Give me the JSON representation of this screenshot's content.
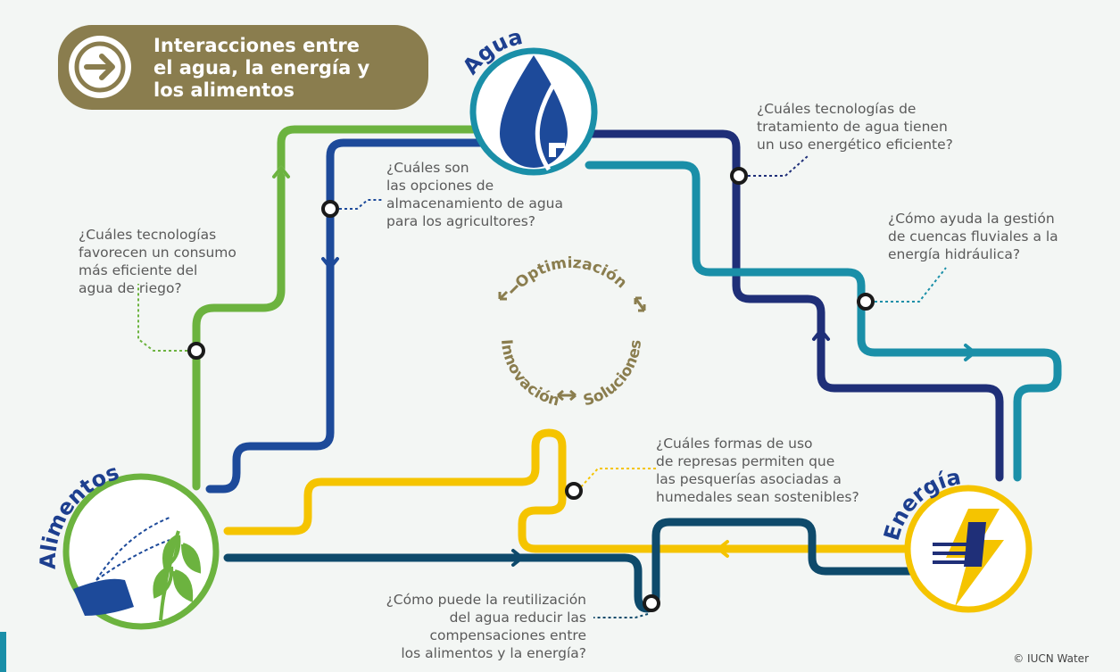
{
  "title": {
    "lines": [
      "Interacciones entre",
      "el agua, la energía y",
      "los alimentos"
    ]
  },
  "nodes": [
    {
      "label": "Agua"
    },
    {
      "label": "Alimentos"
    },
    {
      "label": "Energía"
    }
  ],
  "questions": [
    {
      "lines": [
        "¿Cuáles tecnologías de",
        "tratamiento de agua tienen",
        "un uso energético eficiente?"
      ]
    },
    {
      "lines": [
        "¿Cuáles son",
        "las opciones de",
        "almacenamiento de agua",
        "para los agricultores?"
      ]
    },
    {
      "lines": [
        "¿Cuáles tecnologías",
        "favorecen un consumo",
        "más eficiente del",
        "agua de riego?"
      ]
    },
    {
      "lines": [
        "¿Cómo ayuda la gestión",
        "de cuencas fluviales a la",
        "energía hidráulica?"
      ]
    },
    {
      "lines": [
        "¿Cuáles formas de uso",
        "de represas permiten que",
        "las pesquerías asociadas a",
        "humedales sean sostenibles?"
      ]
    },
    {
      "lines": [
        "¿Cómo puede la reutilización",
        "del agua reducir las",
        "compensaciones entre",
        "los alimentos y la energía?"
      ]
    }
  ],
  "cycle": [
    "Optimización",
    "Soluciones",
    "Innovación"
  ],
  "credit": "© IUCN Water"
}
